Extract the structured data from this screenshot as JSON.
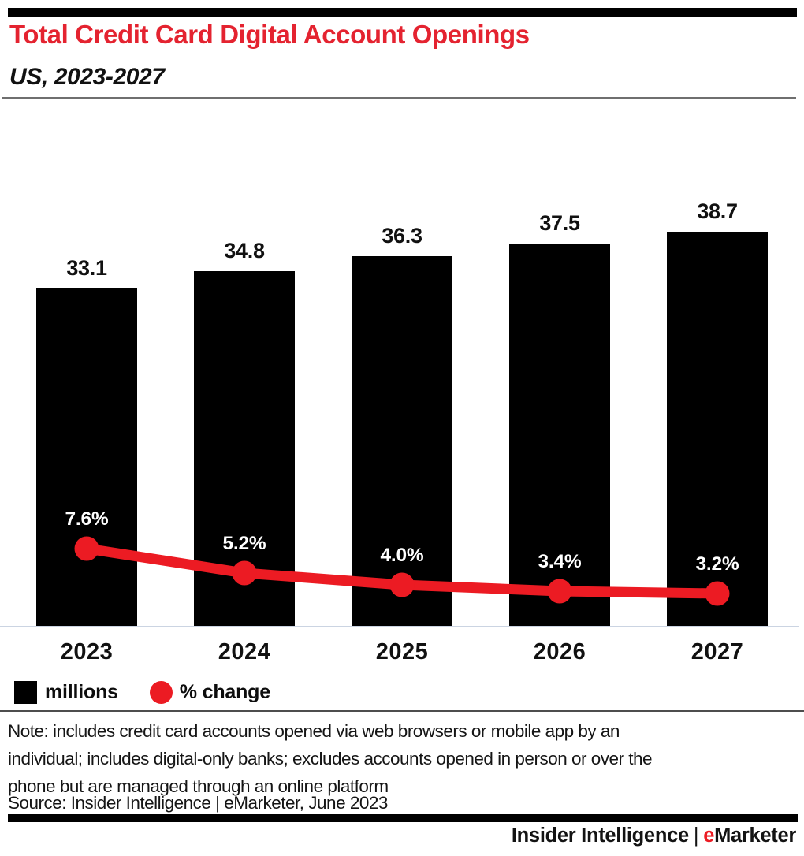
{
  "header": {
    "title_color": "#E42330",
    "rule_color": "#6F6F6F"
  },
  "chart_data": {
    "type": "bar",
    "categories": [
      "2023",
      "2024",
      "2025",
      "2026",
      "2027"
    ],
    "series": [
      {
        "name": "millions",
        "type": "bar",
        "values": [
          33.1,
          34.8,
          36.3,
          37.5,
          38.7
        ],
        "labels": [
          "33.1",
          "34.8",
          "36.3",
          "37.5",
          "38.7"
        ],
        "color": "#000000"
      },
      {
        "name": "% change",
        "type": "line",
        "values": [
          7.6,
          5.2,
          4.0,
          3.4,
          3.2
        ],
        "labels": [
          "7.6%",
          "5.2%",
          "4.0%",
          "3.4%",
          "3.2%"
        ],
        "color": "#EC1B23"
      }
    ],
    "title": "Total Credit Card Digital Account Openings",
    "subtitle": "US, 2023-2027",
    "xlabel": "",
    "ylabel": "",
    "value_axis_visible": false,
    "grid": false,
    "bar_value_labels_position": "above-bar",
    "line_value_labels_position": "above-point",
    "legend_position": "bottom-left"
  },
  "legend": {
    "items": [
      {
        "label": "millions",
        "swatch": "square",
        "color": "#000000"
      },
      {
        "label": "% change",
        "swatch": "circle",
        "color": "#EC1B23"
      }
    ]
  },
  "note": {
    "lines": [
      "Note: includes credit card accounts opened via web browsers or mobile app by an",
      "individual; includes digital-only banks; excludes accounts opened in person or over the",
      "phone but are managed through an online platform"
    ]
  },
  "source": "Source: Insider Intelligence | eMarketer, June 2023",
  "footer": {
    "brand_left": "Insider Intelligence",
    "separator": "|",
    "brand_emphasis": "e",
    "brand_rest": "Marketer",
    "emphasis_color": "#EC1B23"
  }
}
